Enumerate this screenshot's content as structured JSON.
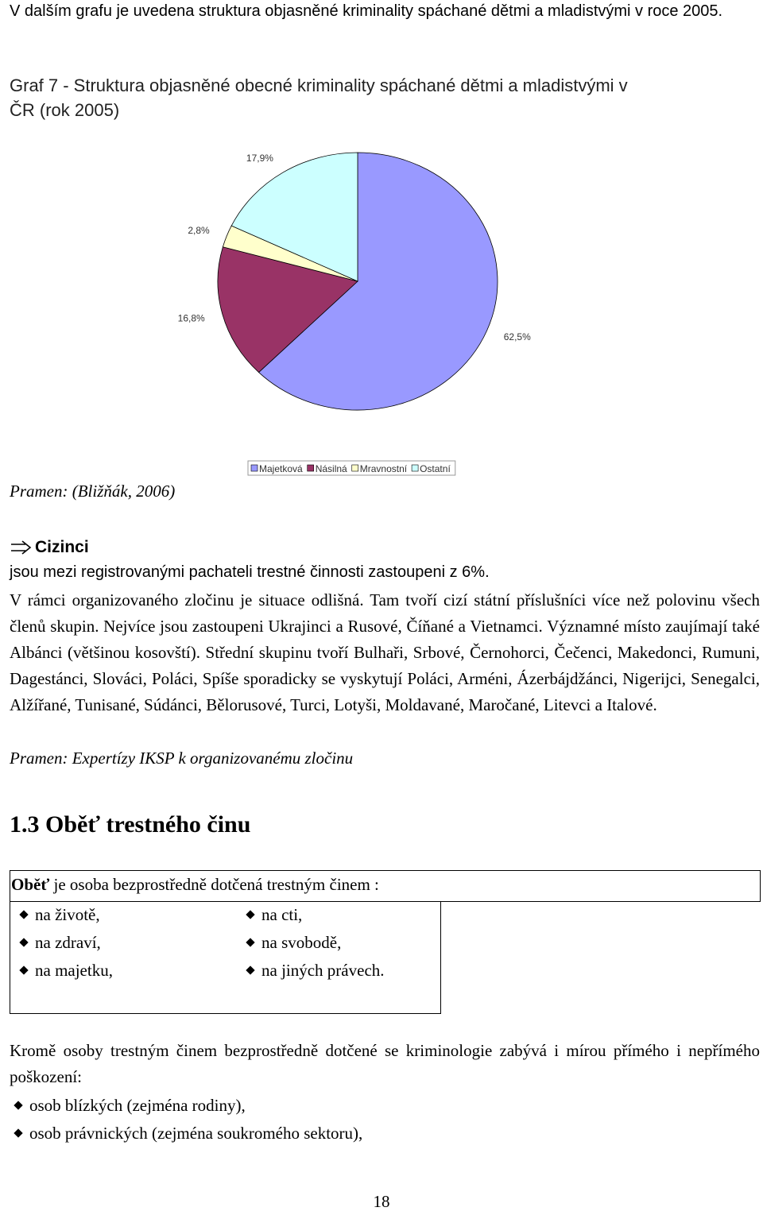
{
  "intro": "V dalším grafu je uvedena struktura objasněné kriminality spáchané dětmi a mladistvými v roce 2005.",
  "chart_data": {
    "type": "pie",
    "title": "Graf 7 - Struktura objasněné obecné kriminality spáchané dětmi a mladistvými v ČR (rok 2005)",
    "categories": [
      "Majetková",
      "Násilná",
      "Mravnostní",
      "Ostatní"
    ],
    "values": [
      62.5,
      16.8,
      2.8,
      17.9
    ],
    "value_labels": [
      "62,5%",
      "16,8%",
      "2,8%",
      "17,9%"
    ],
    "colors": [
      "#9999ff",
      "#993366",
      "#ffffcc",
      "#ccffff"
    ],
    "legend": "bottom"
  },
  "chart_source": "Pramen: (Bližňák, 2006)",
  "section": {
    "heading": "Cizinci",
    "lead": "jsou mezi registrovanými pachateli trestné činnosti zastoupeni z 6%.",
    "paragraph": "V rámci organizovaného zločinu je situace odlišná. Tam tvoří cizí státní příslušníci více než polovinu všech členů skupin. Nejvíce jsou zastoupeni Ukrajinci a Rusové, Číňané a Vietnamci. Významné místo zaujímají také Albánci (většinou kosovští). Střední skupinu tvoří Bulhaři, Srbové, Černohorci, Čečenci, Makedonci, Rumuni, Dagestánci, Slováci, Poláci, Spíše sporadicky se vyskytují Poláci, Arméni, Ázerbájdžánci, Nigerijci, Senegalci, Alžířané, Tunisané, Súdánci, Bělorusové, Turci, Lotyši, Moldavané, Maročané, Litevci a Italové.",
    "source": "Pramen: Expertízy IKSP k organizovanému zločinu"
  },
  "heading": "1.3 Oběť trestného činu",
  "definition": {
    "term": "Oběť",
    "text": "je osoba bezprostředně dotčená trestným činem :",
    "items": [
      "na životě,",
      "na zdraví,",
      "na majetku,",
      "na cti,",
      "na svobodě,",
      "na jiných právech."
    ]
  },
  "paragraph2": "Kromě osoby trestným činem bezprostředně dotčené se kriminologie zabývá i mírou přímého i nepřímého poškození:",
  "items2": [
    "osob blízkých (zejména rodiny),",
    "osob právnických (zejména soukromého sektoru),"
  ],
  "page_number": "18"
}
